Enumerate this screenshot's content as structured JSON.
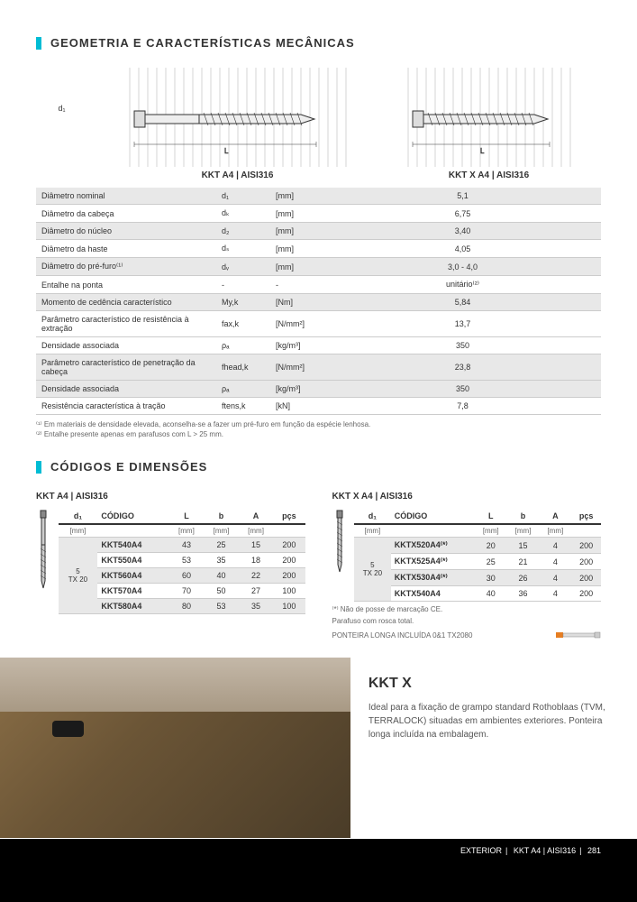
{
  "section1_title": "GEOMETRIA E CARACTERÍSTICAS MECÂNICAS",
  "section2_title": "CÓDIGOS E DIMENSÕES",
  "diagram1_label": "KKT A4 | AISI316",
  "diagram2_label": "KKT X A4 | AISI316",
  "d1_axis": "d₁",
  "spec_rows": [
    {
      "hl": true,
      "name": "Diâmetro nominal",
      "sym": "d₁",
      "unit": "[mm]",
      "val": "5,1"
    },
    {
      "hl": false,
      "name": "Diâmetro da cabeça",
      "sym": "dₖ",
      "unit": "[mm]",
      "val": "6,75"
    },
    {
      "hl": true,
      "name": "Diâmetro do núcleo",
      "sym": "d₂",
      "unit": "[mm]",
      "val": "3,40"
    },
    {
      "hl": false,
      "name": "Diâmetro da haste",
      "sym": "dₛ",
      "unit": "[mm]",
      "val": "4,05"
    },
    {
      "hl": true,
      "name": "Diâmetro do pré-furo⁽¹⁾",
      "sym": "dᵥ",
      "unit": "[mm]",
      "val": "3,0 - 4,0"
    },
    {
      "hl": false,
      "name": "Entalhe na ponta",
      "sym": "-",
      "unit": "-",
      "val": "unitário⁽²⁾"
    },
    {
      "hl": true,
      "name": "Momento de cedência característico",
      "sym": "My,k",
      "unit": "[Nm]",
      "val": "5,84"
    },
    {
      "hl": false,
      "name": "Parâmetro característico de resistência à extração",
      "sym": "fax,k",
      "unit": "[N/mm²]",
      "val": "13,7"
    },
    {
      "hl": false,
      "name": "Densidade associada",
      "sym": "ρₐ",
      "unit": "[kg/m³]",
      "val": "350"
    },
    {
      "hl": true,
      "name": "Parâmetro característico de penetração da cabeça",
      "sym": "fhead,k",
      "unit": "[N/mm²]",
      "val": "23,8"
    },
    {
      "hl": true,
      "name": "Densidade associada",
      "sym": "ρₐ",
      "unit": "[kg/m³]",
      "val": "350"
    },
    {
      "hl": false,
      "name": "Resistência característica à tração",
      "sym": "ftens,k",
      "unit": "[kN]",
      "val": "7,8"
    }
  ],
  "footnote1": "⁽¹⁾ Em materiais de densidade elevada, aconselha-se a fazer um pré-furo em função da espécie lenhosa.",
  "footnote2": "⁽²⁾ Entalhe presente apenas em parafusos com L > 25 mm.",
  "table_a": {
    "title": "KKT A4 | AISI316",
    "d1_label": "5\nTX 20",
    "headers": {
      "d1": "d₁",
      "code": "CÓDIGO",
      "L": "L",
      "b": "b",
      "A": "A",
      "pcs": "pçs"
    },
    "units": {
      "d1": "[mm]",
      "L": "[mm]",
      "b": "[mm]",
      "A": "[mm]"
    },
    "rows": [
      {
        "hl": true,
        "code": "KKT540A4",
        "L": "43",
        "b": "25",
        "A": "15",
        "pcs": "200"
      },
      {
        "hl": false,
        "code": "KKT550A4",
        "L": "53",
        "b": "35",
        "A": "18",
        "pcs": "200"
      },
      {
        "hl": true,
        "code": "KKT560A4",
        "L": "60",
        "b": "40",
        "A": "22",
        "pcs": "200"
      },
      {
        "hl": false,
        "code": "KKT570A4",
        "L": "70",
        "b": "50",
        "A": "27",
        "pcs": "100"
      },
      {
        "hl": true,
        "code": "KKT580A4",
        "L": "80",
        "b": "53",
        "A": "35",
        "pcs": "100"
      }
    ]
  },
  "table_b": {
    "title": "KKT X A4 | AISI316",
    "d1_label": "5\nTX 20",
    "headers": {
      "d1": "d₁",
      "code": "CÓDIGO",
      "L": "L",
      "b": "b",
      "A": "A",
      "pcs": "pçs"
    },
    "units": {
      "d1": "[mm]",
      "L": "[mm]",
      "b": "[mm]",
      "A": "[mm]"
    },
    "rows": [
      {
        "hl": true,
        "code": "KKTX520A4⁽*⁾",
        "L": "20",
        "b": "15",
        "A": "4",
        "pcs": "200"
      },
      {
        "hl": false,
        "code": "KKTX525A4⁽*⁾",
        "L": "25",
        "b": "21",
        "A": "4",
        "pcs": "200"
      },
      {
        "hl": true,
        "code": "KKTX530A4⁽*⁾",
        "L": "30",
        "b": "26",
        "A": "4",
        "pcs": "200"
      },
      {
        "hl": false,
        "code": "KKTX540A4",
        "L": "40",
        "b": "36",
        "A": "4",
        "pcs": "200"
      }
    ],
    "note1": "⁽*⁾ Não de posse de marcação CE.",
    "note2": "Parafuso com rosca total.",
    "bit_note": "PONTEIRA LONGA INCLUÍDA 0&1 TX2080"
  },
  "product": {
    "title": "KKT X",
    "desc": "Ideal para a fixação de grampo standard Rothoblaas (TVM, TERRALOCK) situadas em ambientes exteriores. Ponteira longa incluída na embalagem."
  },
  "footer": {
    "a": "EXTERIOR",
    "b": "KKT A4 | AISI316",
    "c": "281"
  }
}
